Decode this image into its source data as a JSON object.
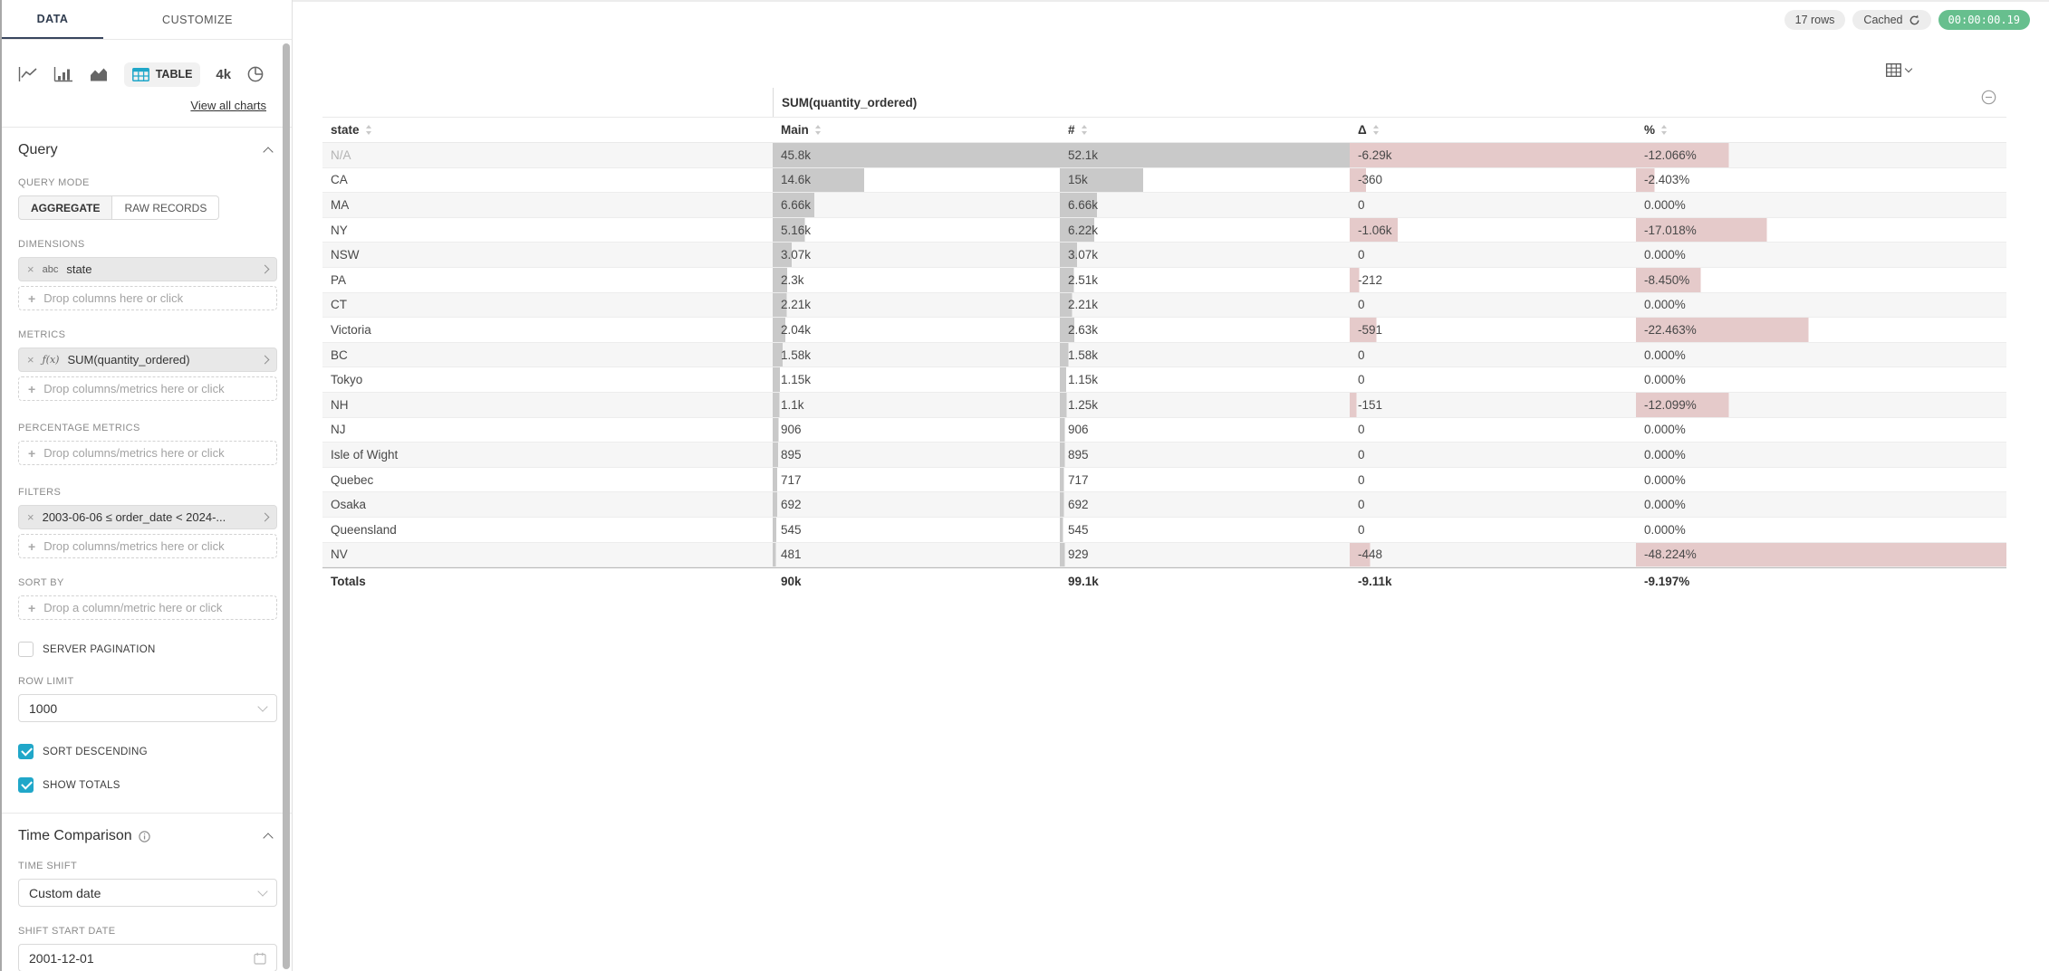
{
  "colors": {
    "accent": "#20a7c9",
    "bar_gray": "#c9c9c9",
    "bar_pink": "#e5caca",
    "timer_green": "#67bf8e"
  },
  "panel": {
    "tabs": {
      "data": "DATA",
      "customize": "CUSTOMIZE"
    },
    "chart_types": {
      "table_label": "TABLE",
      "big_number_label": "4k"
    },
    "view_all_charts": "View all charts",
    "query": {
      "title": "Query",
      "query_mode_label": "QUERY MODE",
      "aggregate_label": "AGGREGATE",
      "raw_records_label": "RAW RECORDS",
      "dimensions_label": "DIMENSIONS",
      "dimension_pill": {
        "type": "abc",
        "label": "state"
      },
      "drop_columns_placeholder": "Drop columns here or click",
      "metrics_label": "METRICS",
      "metric_pill": {
        "type": "ƒ(x)",
        "label": "SUM(quantity_ordered)"
      },
      "drop_columns_metrics_placeholder": "Drop columns/metrics here or click",
      "percentage_metrics_label": "PERCENTAGE METRICS",
      "filters_label": "FILTERS",
      "filter_pill": {
        "label": "2003-06-06 ≤ order_date < 2024-..."
      },
      "sort_by_label": "SORT BY",
      "drop_column_metric_placeholder": "Drop a column/metric here or click",
      "server_pagination_label": "SERVER PAGINATION",
      "server_pagination_checked": false,
      "row_limit_label": "ROW LIMIT",
      "row_limit_value": "1000",
      "sort_descending_label": "SORT DESCENDING",
      "sort_descending_checked": true,
      "show_totals_label": "SHOW TOTALS",
      "show_totals_checked": true
    },
    "time_comparison": {
      "title": "Time Comparison",
      "time_shift_label": "TIME SHIFT",
      "time_shift_value": "Custom date",
      "shift_start_date_label": "SHIFT START DATE",
      "shift_start_date_value": "2001-12-01"
    }
  },
  "statusbar": {
    "rows_badge": "17 rows",
    "cached_label": "Cached",
    "timer": "00:00:00.19"
  },
  "table": {
    "group_header": "SUM(quantity_ordered)",
    "columns": [
      "state",
      "Main",
      "#",
      "Δ",
      "%"
    ],
    "max": {
      "main": 45800,
      "hash": 52100,
      "delta": 6290,
      "pct": 48.224
    },
    "rows": [
      {
        "state": "N/A",
        "na": true,
        "main": "45.8k",
        "main_v": 45800,
        "hash": "52.1k",
        "hash_v": 52100,
        "delta": "-6.29k",
        "delta_v": 6290,
        "pct": "-12.066%",
        "pct_v": 12.066
      },
      {
        "state": "CA",
        "na": false,
        "main": "14.6k",
        "main_v": 14600,
        "hash": "15k",
        "hash_v": 15000,
        "delta": "-360",
        "delta_v": 360,
        "pct": "-2.403%",
        "pct_v": 2.403
      },
      {
        "state": "MA",
        "na": false,
        "main": "6.66k",
        "main_v": 6660,
        "hash": "6.66k",
        "hash_v": 6660,
        "delta": "0",
        "delta_v": 0,
        "pct": "0.000%",
        "pct_v": 0
      },
      {
        "state": "NY",
        "na": false,
        "main": "5.16k",
        "main_v": 5160,
        "hash": "6.22k",
        "hash_v": 6220,
        "delta": "-1.06k",
        "delta_v": 1060,
        "pct": "-17.018%",
        "pct_v": 17.018
      },
      {
        "state": "NSW",
        "na": false,
        "main": "3.07k",
        "main_v": 3070,
        "hash": "3.07k",
        "hash_v": 3070,
        "delta": "0",
        "delta_v": 0,
        "pct": "0.000%",
        "pct_v": 0
      },
      {
        "state": "PA",
        "na": false,
        "main": "2.3k",
        "main_v": 2300,
        "hash": "2.51k",
        "hash_v": 2510,
        "delta": "-212",
        "delta_v": 212,
        "pct": "-8.450%",
        "pct_v": 8.45
      },
      {
        "state": "CT",
        "na": false,
        "main": "2.21k",
        "main_v": 2210,
        "hash": "2.21k",
        "hash_v": 2210,
        "delta": "0",
        "delta_v": 0,
        "pct": "0.000%",
        "pct_v": 0
      },
      {
        "state": "Victoria",
        "na": false,
        "main": "2.04k",
        "main_v": 2040,
        "hash": "2.63k",
        "hash_v": 2630,
        "delta": "-591",
        "delta_v": 591,
        "pct": "-22.463%",
        "pct_v": 22.463
      },
      {
        "state": "BC",
        "na": false,
        "main": "1.58k",
        "main_v": 1580,
        "hash": "1.58k",
        "hash_v": 1580,
        "delta": "0",
        "delta_v": 0,
        "pct": "0.000%",
        "pct_v": 0
      },
      {
        "state": "Tokyo",
        "na": false,
        "main": "1.15k",
        "main_v": 1150,
        "hash": "1.15k",
        "hash_v": 1150,
        "delta": "0",
        "delta_v": 0,
        "pct": "0.000%",
        "pct_v": 0
      },
      {
        "state": "NH",
        "na": false,
        "main": "1.1k",
        "main_v": 1100,
        "hash": "1.25k",
        "hash_v": 1250,
        "delta": "-151",
        "delta_v": 151,
        "pct": "-12.099%",
        "pct_v": 12.099
      },
      {
        "state": "NJ",
        "na": false,
        "main": "906",
        "main_v": 906,
        "hash": "906",
        "hash_v": 906,
        "delta": "0",
        "delta_v": 0,
        "pct": "0.000%",
        "pct_v": 0
      },
      {
        "state": "Isle of Wight",
        "na": false,
        "main": "895",
        "main_v": 895,
        "hash": "895",
        "hash_v": 895,
        "delta": "0",
        "delta_v": 0,
        "pct": "0.000%",
        "pct_v": 0
      },
      {
        "state": "Quebec",
        "na": false,
        "main": "717",
        "main_v": 717,
        "hash": "717",
        "hash_v": 717,
        "delta": "0",
        "delta_v": 0,
        "pct": "0.000%",
        "pct_v": 0
      },
      {
        "state": "Osaka",
        "na": false,
        "main": "692",
        "main_v": 692,
        "hash": "692",
        "hash_v": 692,
        "delta": "0",
        "delta_v": 0,
        "pct": "0.000%",
        "pct_v": 0
      },
      {
        "state": "Queensland",
        "na": false,
        "main": "545",
        "main_v": 545,
        "hash": "545",
        "hash_v": 545,
        "delta": "0",
        "delta_v": 0,
        "pct": "0.000%",
        "pct_v": 0
      },
      {
        "state": "NV",
        "na": false,
        "main": "481",
        "main_v": 481,
        "hash": "929",
        "hash_v": 929,
        "delta": "-448",
        "delta_v": 448,
        "pct": "-48.224%",
        "pct_v": 48.224
      }
    ],
    "totals": {
      "label": "Totals",
      "main": "90k",
      "hash": "99.1k",
      "delta": "-9.11k",
      "pct": "-9.197%"
    }
  }
}
